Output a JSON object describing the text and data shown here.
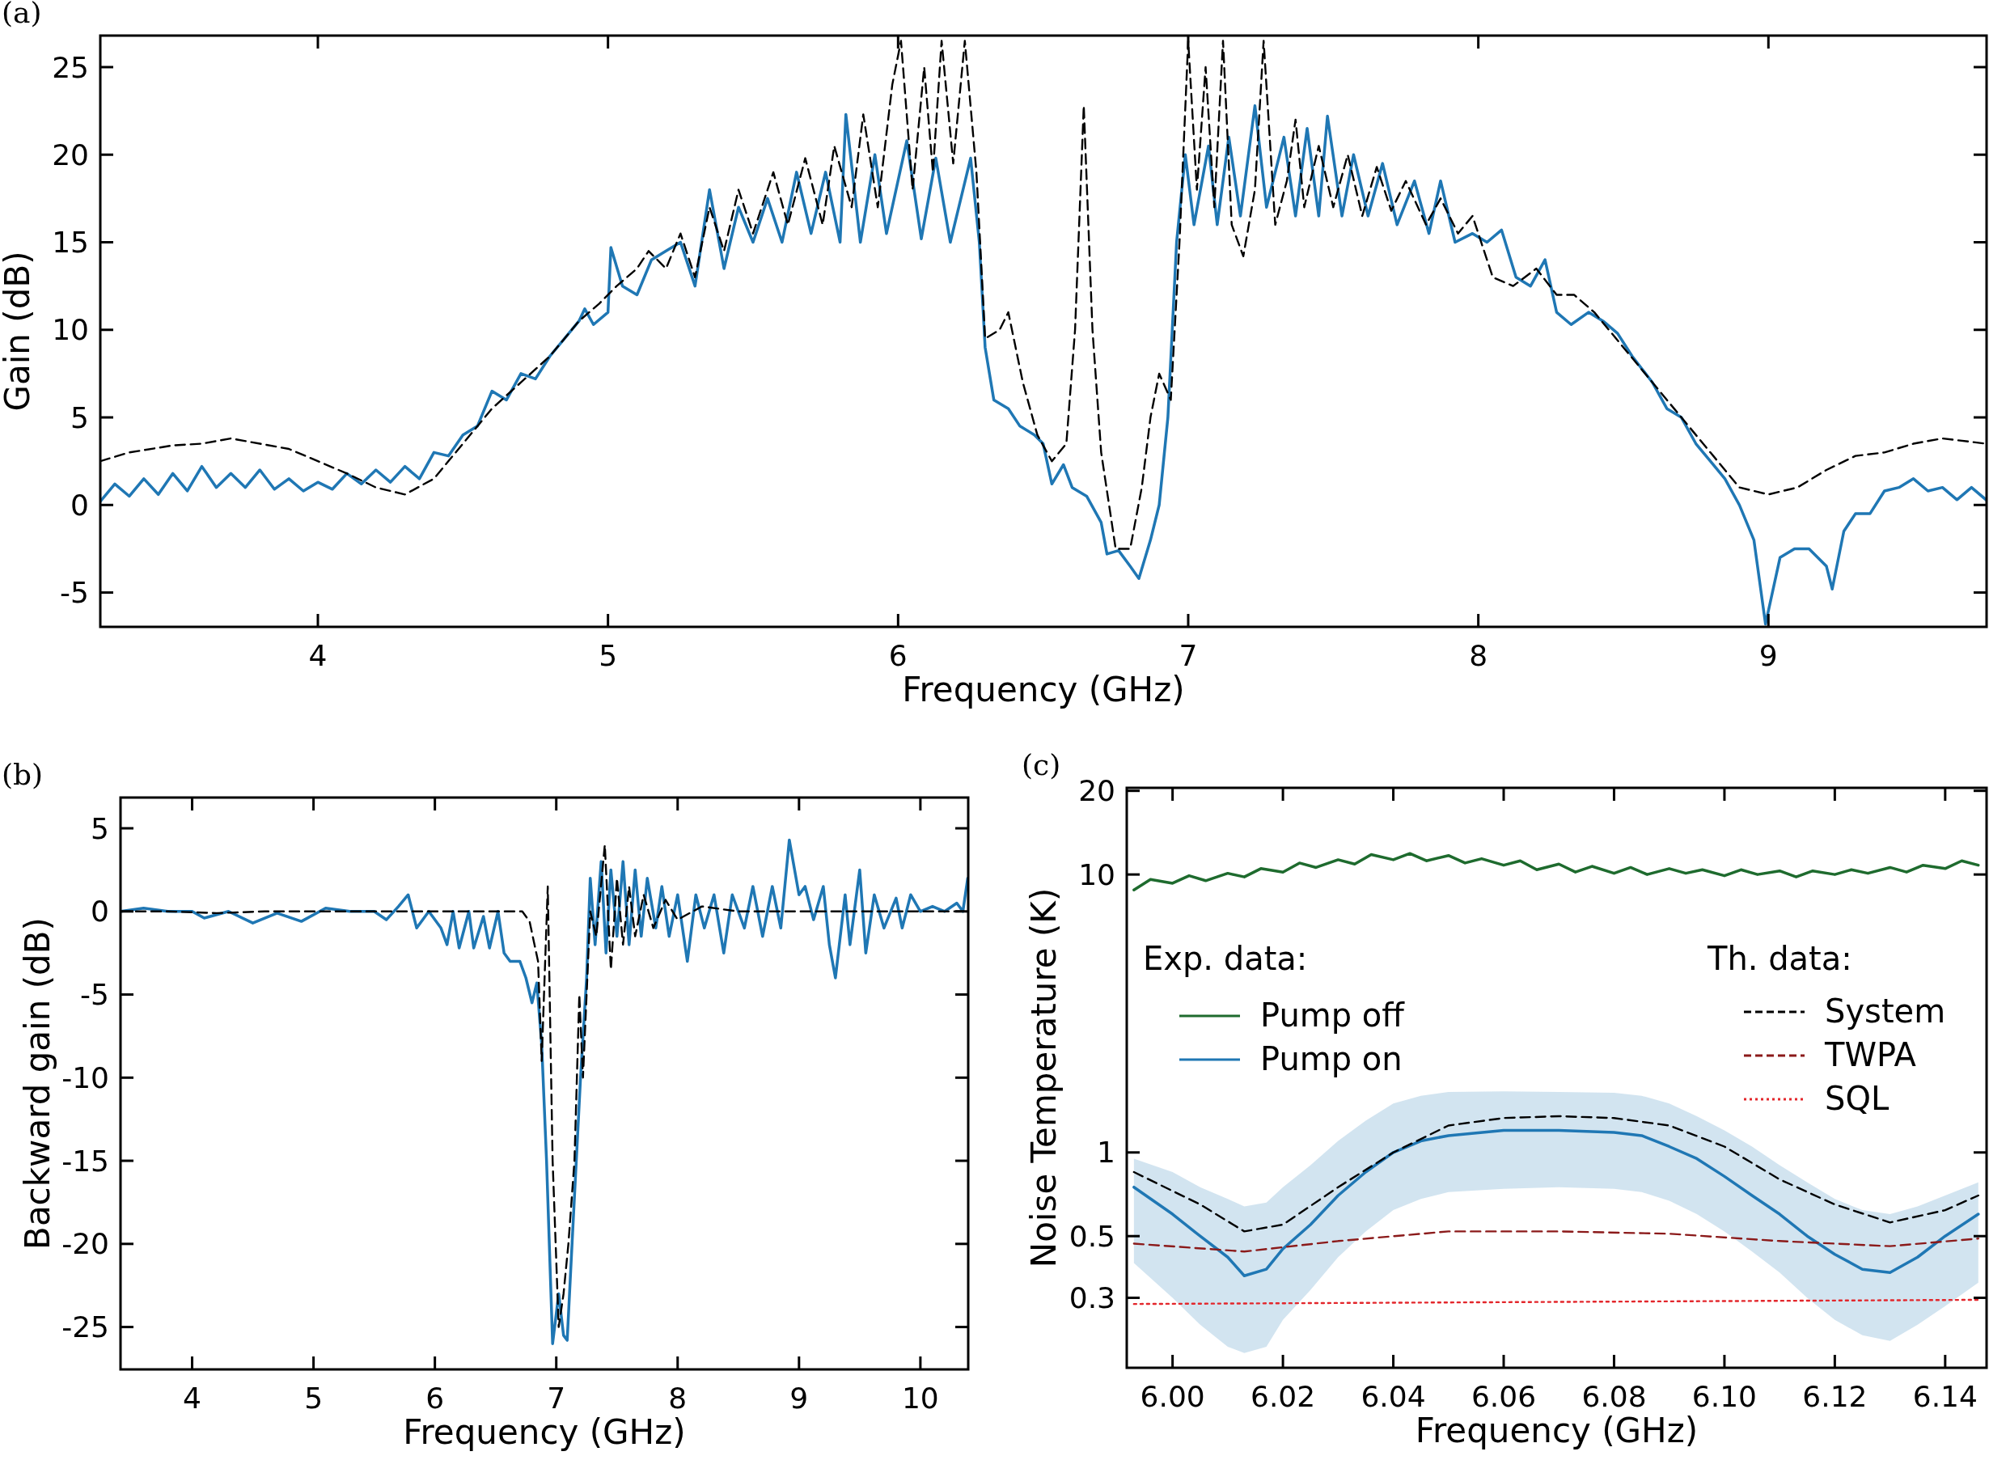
{
  "chart_data": [
    {
      "type": "line",
      "title": "(a)",
      "xlabel": "Frequency (GHz)",
      "ylabel": "Gain (dB)",
      "xlim": [
        3.25,
        9.752
      ],
      "ylim": [
        -6.96,
        26.8
      ],
      "xticks": [
        4,
        5,
        6,
        7,
        8,
        9
      ],
      "yticks": [
        -5,
        0,
        5,
        10,
        15,
        20,
        25
      ],
      "series": [
        {
          "color": "#1f77b4",
          "line_style": "solid",
          "x": [
            3.25,
            3.3,
            3.35,
            3.4,
            3.45,
            3.5,
            3.55,
            3.6,
            3.65,
            3.7,
            3.75,
            3.8,
            3.85,
            3.9,
            3.95,
            4.0,
            4.05,
            4.1,
            4.15,
            4.2,
            4.25,
            4.3,
            4.35,
            4.4,
            4.45,
            4.5,
            4.55,
            4.6,
            4.65,
            4.7,
            4.75,
            4.8,
            4.85,
            4.9,
            4.92,
            4.95,
            5.0,
            5.01,
            5.05,
            5.1,
            5.15,
            5.2,
            5.25,
            5.3,
            5.35,
            5.4,
            5.45,
            5.5,
            5.55,
            5.6,
            5.65,
            5.7,
            5.75,
            5.8,
            5.82,
            5.87,
            5.92,
            5.96,
            6.03,
            6.08,
            6.13,
            6.18,
            6.25,
            6.28,
            6.3,
            6.33,
            6.38,
            6.42,
            6.47,
            6.5,
            6.53,
            6.57,
            6.6,
            6.65,
            6.7,
            6.72,
            6.76,
            6.8,
            6.83,
            6.87,
            6.9,
            6.93,
            6.96,
            6.99,
            7.02,
            7.07,
            7.1,
            7.14,
            7.18,
            7.23,
            7.27,
            7.33,
            7.37,
            7.41,
            7.45,
            7.48,
            7.53,
            7.57,
            7.62,
            7.67,
            7.72,
            7.78,
            7.83,
            7.87,
            7.92,
            7.98,
            8.03,
            8.08,
            8.13,
            8.18,
            8.23,
            8.27,
            8.32,
            8.38,
            8.43,
            8.48,
            8.53,
            8.6,
            8.65,
            8.7,
            8.75,
            8.8,
            8.85,
            8.9,
            8.95,
            8.99,
            9.04,
            9.09,
            9.14,
            9.2,
            9.22,
            9.26,
            9.3,
            9.35,
            9.4,
            9.45,
            9.5,
            9.55,
            9.6,
            9.65,
            9.7,
            9.75
          ],
          "values": [
            0.2,
            1.2,
            0.5,
            1.5,
            0.6,
            1.8,
            0.8,
            2.2,
            1.0,
            1.8,
            1.0,
            2.0,
            0.9,
            1.5,
            0.8,
            1.3,
            0.9,
            1.8,
            1.2,
            2.0,
            1.3,
            2.2,
            1.5,
            3.0,
            2.8,
            4.0,
            4.5,
            6.5,
            6.0,
            7.5,
            7.2,
            8.5,
            9.5,
            10.5,
            11.2,
            10.3,
            11,
            14.7,
            12.5,
            12.0,
            14.0,
            14.5,
            15,
            12.5,
            18,
            13.5,
            17,
            15,
            17.5,
            15,
            19,
            15.5,
            19,
            15,
            22.3,
            15,
            20,
            15.5,
            20.8,
            15.2,
            19.8,
            15,
            19.8,
            15,
            9,
            6,
            5.5,
            4.5,
            4,
            3.5,
            1.2,
            2.3,
            1,
            0.5,
            -1,
            -2.8,
            -2.6,
            -3.5,
            -4.2,
            -2,
            0,
            5,
            15,
            20,
            16,
            20.5,
            16,
            21,
            16.5,
            22.8,
            17,
            21,
            16.5,
            21.5,
            16.5,
            22.2,
            16.5,
            20,
            16.5,
            19.5,
            16,
            18.5,
            15.5,
            18.5,
            15,
            15.5,
            15,
            15.7,
            13,
            12.5,
            14,
            11,
            10.3,
            11,
            10.5,
            9.8,
            8.5,
            7,
            5.5,
            5,
            3.5,
            2.5,
            1.5,
            0,
            -2,
            -6.8,
            -3,
            -2.5,
            -2.5,
            -3.5,
            -4.8,
            -1.5,
            -0.5,
            -0.5,
            0.8,
            1,
            1.5,
            0.8,
            1.0,
            0.3,
            1.0,
            0.3
          ]
        },
        {
          "color": "#000000",
          "line_style": "dashed",
          "x": [
            3.25,
            3.35,
            3.5,
            3.6,
            3.7,
            3.8,
            3.9,
            4.0,
            4.1,
            4.2,
            4.3,
            4.4,
            4.5,
            4.6,
            4.7,
            4.8,
            4.9,
            4.97,
            5.03,
            5.1,
            5.14,
            5.2,
            5.25,
            5.3,
            5.35,
            5.4,
            5.45,
            5.5,
            5.57,
            5.62,
            5.68,
            5.74,
            5.78,
            5.84,
            5.88,
            5.93,
            5.98,
            6.01,
            6.05,
            6.09,
            6.12,
            6.15,
            6.19,
            6.23,
            6.27,
            6.3,
            6.35,
            6.38,
            6.43,
            6.48,
            6.53,
            6.58,
            6.61,
            6.64,
            6.67,
            6.7,
            6.75,
            6.8,
            6.84,
            6.87,
            6.9,
            6.94,
            6.97,
            7.0,
            7.03,
            7.06,
            7.09,
            7.12,
            7.15,
            7.19,
            7.23,
            7.26,
            7.3,
            7.34,
            7.37,
            7.4,
            7.45,
            7.5,
            7.55,
            7.6,
            7.65,
            7.7,
            7.75,
            7.82,
            7.87,
            7.93,
            7.98,
            8.05,
            8.12,
            8.2,
            8.27,
            8.33,
            8.4,
            8.5,
            8.6,
            8.7,
            8.8,
            8.9,
            9.0,
            9.1,
            9.2,
            9.3,
            9.4,
            9.5,
            9.6,
            9.7,
            9.75
          ],
          "values": [
            2.5,
            3.0,
            3.4,
            3.5,
            3.8,
            3.5,
            3.2,
            2.5,
            1.8,
            1.0,
            0.6,
            1.5,
            3.5,
            5.5,
            7.0,
            8.5,
            10.5,
            11.5,
            12.5,
            13.5,
            14.5,
            13.5,
            15.5,
            13,
            17,
            14.5,
            18,
            15.5,
            19,
            16,
            19.8,
            16,
            20.5,
            17,
            22.3,
            17,
            24,
            26.5,
            18,
            25,
            19,
            26.5,
            19.5,
            26.5,
            19,
            9.5,
            10,
            11,
            7,
            4,
            2.5,
            3.5,
            10,
            22.8,
            10,
            3,
            -2.5,
            -2.5,
            1,
            5,
            7.5,
            6,
            15,
            26.5,
            18,
            25,
            17,
            26.5,
            16,
            14.2,
            18,
            26.5,
            16,
            18.5,
            22,
            17,
            20.5,
            17,
            20,
            16.5,
            19.3,
            16.8,
            18.5,
            16,
            17.5,
            15.5,
            16.5,
            13,
            12.5,
            13.5,
            12,
            12,
            11,
            9,
            7,
            5,
            3,
            1,
            0.6,
            1,
            2,
            2.8,
            3,
            3.5,
            3.8,
            3.6,
            3.5
          ]
        }
      ]
    },
    {
      "type": "line",
      "title": "(b)",
      "xlabel": "Frequency (GHz)",
      "ylabel": "Backward gain (dB)",
      "xlim": [
        3.41,
        10.394
      ],
      "ylim": [
        -27.55,
        6.85
      ],
      "xticks": [
        4,
        5,
        6,
        7,
        8,
        9,
        10
      ],
      "yticks": [
        -25,
        -20,
        -15,
        -10,
        -5,
        0,
        5
      ],
      "series": [
        {
          "color": "#1f77b4",
          "line_style": "solid",
          "x": [
            3.41,
            3.6,
            3.8,
            4.0,
            4.1,
            4.3,
            4.5,
            4.7,
            4.9,
            5.1,
            5.3,
            5.5,
            5.6,
            5.7,
            5.78,
            5.85,
            5.95,
            6.05,
            6.1,
            6.15,
            6.2,
            6.28,
            6.32,
            6.4,
            6.45,
            6.52,
            6.57,
            6.62,
            6.7,
            6.75,
            6.8,
            6.84,
            6.88,
            6.92,
            6.97,
            7.02,
            7.06,
            7.09,
            7.13,
            7.2,
            7.25,
            7.28,
            7.32,
            7.37,
            7.41,
            7.45,
            7.5,
            7.55,
            7.6,
            7.65,
            7.7,
            7.75,
            7.82,
            7.87,
            7.93,
            8.0,
            8.08,
            8.15,
            8.22,
            8.3,
            8.38,
            8.45,
            8.55,
            8.62,
            8.7,
            8.78,
            8.85,
            8.92,
            9.0,
            9.05,
            9.12,
            9.2,
            9.25,
            9.3,
            9.38,
            9.42,
            9.5,
            9.55,
            9.62,
            9.7,
            9.8,
            9.85,
            9.92,
            10.0,
            10.1,
            10.2,
            10.3,
            10.35,
            10.39
          ],
          "values": [
            0,
            0.2,
            0,
            0,
            -0.4,
            0,
            -0.7,
            -0.1,
            -0.6,
            0.2,
            0,
            0,
            -0.5,
            0.3,
            1,
            -1,
            0,
            -1,
            -2,
            0,
            -2.2,
            0,
            -2.2,
            -0.3,
            -2.2,
            0,
            -2.5,
            -3,
            -3,
            -4,
            -5.5,
            -4.3,
            -8,
            -15,
            -26,
            -23,
            -25.5,
            -25.8,
            -20,
            -10,
            -4,
            2,
            -2,
            3,
            -2.5,
            2.5,
            -1.5,
            3,
            -2,
            2.5,
            -1.5,
            2,
            -1,
            1.5,
            -1.5,
            1,
            -3,
            1,
            -1,
            1,
            -2.5,
            1,
            -1,
            1.5,
            -1.5,
            1.5,
            -1,
            4.3,
            1,
            1.5,
            -0.5,
            1.5,
            -2,
            -4,
            1,
            -2,
            2.5,
            -2.5,
            1,
            -1,
            0.8,
            -1,
            1,
            0,
            0.3,
            0,
            0.5,
            0,
            2
          ]
        },
        {
          "color": "#000000",
          "line_style": "dashed",
          "x": [
            3.41,
            3.8,
            4.2,
            4.6,
            5.0,
            5.5,
            6.0,
            6.5,
            6.72,
            6.78,
            6.85,
            6.88,
            6.93,
            6.97,
            7.02,
            7.06,
            7.1,
            7.15,
            7.19,
            7.22,
            7.28,
            7.33,
            7.4,
            7.45,
            7.5,
            7.55,
            7.6,
            7.65,
            7.72,
            7.8,
            7.9,
            8.0,
            8.2,
            8.5,
            9.0,
            9.5,
            10.0,
            10.39
          ],
          "values": [
            0,
            0,
            -0.1,
            0,
            0,
            0,
            0,
            0,
            0,
            -0.6,
            -3,
            -9,
            1.5,
            -15,
            -25,
            -23,
            -20,
            -15,
            -5,
            -10,
            0,
            -1.5,
            4,
            -3.5,
            2,
            -2,
            1.5,
            -1.5,
            1,
            -1,
            0.7,
            -0.5,
            0.3,
            0,
            0,
            0,
            0,
            0
          ]
        }
      ]
    },
    {
      "type": "line",
      "title": "(c)",
      "xlabel": "Frequency (GHz)",
      "ylabel": "Noise Temperature (K)",
      "log": "y",
      "legend": "top",
      "annotations": [
        "Exp. data:",
        "Th. data:"
      ],
      "xlim": [
        5.9917,
        6.1475
      ],
      "ylim": [
        0.168,
        20.5
      ],
      "xticks": [
        {
          "value": 6.0,
          "label": "6.00"
        },
        {
          "value": 6.02,
          "label": "6.02"
        },
        {
          "value": 6.04,
          "label": "6.04"
        },
        {
          "value": 6.06,
          "label": "6.06"
        },
        {
          "value": 6.08,
          "label": "6.08"
        },
        {
          "value": 6.1,
          "label": "6.10"
        },
        {
          "value": 6.12,
          "label": "6.12"
        },
        {
          "value": 6.14,
          "label": "6.14"
        }
      ],
      "yticks": [
        0.3,
        0.5,
        1,
        10,
        20
      ],
      "series": [
        {
          "name": "Pump off",
          "color": "#1e6b2e",
          "line_style": "solid",
          "x": [
            5.993,
            5.996,
            6.0,
            6.003,
            6.006,
            6.01,
            6.013,
            6.016,
            6.02,
            6.023,
            6.026,
            6.03,
            6.033,
            6.036,
            6.04,
            6.043,
            6.046,
            6.05,
            6.053,
            6.056,
            6.06,
            6.063,
            6.066,
            6.07,
            6.073,
            6.076,
            6.08,
            6.083,
            6.086,
            6.09,
            6.093,
            6.096,
            6.1,
            6.103,
            6.106,
            6.11,
            6.113,
            6.116,
            6.12,
            6.123,
            6.126,
            6.13,
            6.133,
            6.136,
            6.14,
            6.143,
            6.146
          ],
          "values": [
            8.8,
            9.6,
            9.3,
            9.9,
            9.5,
            10.1,
            9.8,
            10.5,
            10.2,
            11,
            10.6,
            11.3,
            10.9,
            11.8,
            11.3,
            11.9,
            11.2,
            11.7,
            11.0,
            11.4,
            10.8,
            11.2,
            10.4,
            10.9,
            10.2,
            10.7,
            10.1,
            10.6,
            10.0,
            10.5,
            10.1,
            10.4,
            9.9,
            10.4,
            10.0,
            10.3,
            9.8,
            10.3,
            10.0,
            10.4,
            10.1,
            10.6,
            10.2,
            10.8,
            10.5,
            11.2,
            10.8
          ]
        },
        {
          "name": "Pump on",
          "color": "#1f77b4",
          "line_style": "solid",
          "x": [
            5.993,
            6.0,
            6.005,
            6.01,
            6.013,
            6.017,
            6.02,
            6.025,
            6.03,
            6.035,
            6.04,
            6.045,
            6.05,
            6.06,
            6.07,
            6.08,
            6.085,
            6.09,
            6.095,
            6.1,
            6.105,
            6.11,
            6.115,
            6.12,
            6.125,
            6.13,
            6.135,
            6.14,
            6.146
          ],
          "values": [
            0.75,
            0.6,
            0.5,
            0.42,
            0.36,
            0.38,
            0.45,
            0.55,
            0.7,
            0.85,
            1.0,
            1.1,
            1.15,
            1.2,
            1.2,
            1.18,
            1.15,
            1.05,
            0.95,
            0.82,
            0.7,
            0.6,
            0.5,
            0.43,
            0.38,
            0.37,
            0.42,
            0.5,
            0.6
          ],
          "lower": [
            0.4,
            0.3,
            0.24,
            0.2,
            0.19,
            0.2,
            0.25,
            0.32,
            0.42,
            0.52,
            0.62,
            0.68,
            0.72,
            0.74,
            0.75,
            0.74,
            0.72,
            0.67,
            0.6,
            0.52,
            0.44,
            0.37,
            0.3,
            0.25,
            0.22,
            0.21,
            0.24,
            0.28,
            0.34
          ],
          "upper": [
            0.95,
            0.85,
            0.75,
            0.68,
            0.64,
            0.66,
            0.75,
            0.9,
            1.1,
            1.3,
            1.5,
            1.6,
            1.65,
            1.66,
            1.65,
            1.64,
            1.6,
            1.5,
            1.35,
            1.2,
            1.05,
            0.9,
            0.78,
            0.68,
            0.62,
            0.6,
            0.64,
            0.7,
            0.78
          ]
        },
        {
          "name": "System",
          "color": "#000000",
          "line_style": "dashed",
          "x": [
            5.993,
            6.005,
            6.013,
            6.02,
            6.03,
            6.04,
            6.05,
            6.06,
            6.07,
            6.08,
            6.09,
            6.1,
            6.11,
            6.12,
            6.13,
            6.14,
            6.146
          ],
          "values": [
            0.85,
            0.65,
            0.52,
            0.55,
            0.75,
            1.0,
            1.25,
            1.33,
            1.35,
            1.33,
            1.25,
            1.05,
            0.8,
            0.65,
            0.56,
            0.62,
            0.7
          ]
        },
        {
          "name": "TWPA",
          "color": "#8b1a1a",
          "line_style": "dashed",
          "x": [
            5.993,
            6.013,
            6.03,
            6.05,
            6.07,
            6.09,
            6.11,
            6.13,
            6.146
          ],
          "values": [
            0.47,
            0.44,
            0.48,
            0.52,
            0.52,
            0.51,
            0.48,
            0.46,
            0.49
          ]
        },
        {
          "name": "SQL",
          "color": "#e3262b",
          "line_style": "dotted",
          "x": [
            5.993,
            6.07,
            6.146
          ],
          "values": [
            0.285,
            0.29,
            0.295
          ]
        }
      ]
    }
  ]
}
